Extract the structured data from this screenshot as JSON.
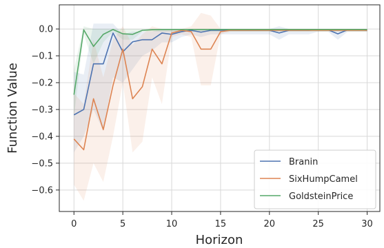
{
  "chart_data": {
    "type": "line",
    "title": "",
    "xlabel": "Horizon",
    "ylabel": "Function Value",
    "xlim": [
      -1.5,
      31.3
    ],
    "ylim": [
      -0.68,
      0.09
    ],
    "xticks": [
      0,
      5,
      10,
      15,
      20,
      25,
      30
    ],
    "yticks": [
      0.0,
      -0.1,
      -0.2,
      -0.3,
      -0.4,
      -0.5,
      -0.6
    ],
    "xtick_labels": [
      "0",
      "5",
      "10",
      "15",
      "20",
      "25",
      "30"
    ],
    "ytick_labels": [
      "0.0",
      "−0.1",
      "−0.2",
      "−0.3",
      "−0.4",
      "−0.5",
      "−0.6"
    ],
    "grid": true,
    "legend_position": "bottom-right",
    "x": [
      0,
      1,
      2,
      3,
      4,
      5,
      6,
      7,
      8,
      9,
      10,
      11,
      12,
      13,
      14,
      15,
      16,
      17,
      18,
      19,
      20,
      21,
      22,
      23,
      24,
      25,
      26,
      27,
      28,
      29,
      30
    ],
    "series": [
      {
        "name": "Branin",
        "color": "#4c72b0",
        "values": [
          -0.32,
          -0.3,
          -0.13,
          -0.13,
          -0.015,
          -0.085,
          -0.048,
          -0.04,
          -0.04,
          -0.015,
          -0.02,
          -0.01,
          -0.005,
          -0.012,
          -0.005,
          -0.005,
          -0.005,
          -0.005,
          -0.005,
          -0.005,
          -0.005,
          -0.015,
          -0.005,
          -0.005,
          -0.005,
          -0.003,
          -0.003,
          -0.018,
          -0.003,
          -0.003,
          -0.005
        ],
        "lower": [
          -0.46,
          -0.4,
          -0.3,
          -0.38,
          -0.18,
          -0.2,
          -0.15,
          -0.1,
          -0.08,
          -0.05,
          -0.05,
          -0.03,
          -0.02,
          -0.03,
          -0.02,
          -0.02,
          -0.02,
          -0.02,
          -0.02,
          -0.02,
          -0.02,
          -0.04,
          -0.02,
          -0.02,
          -0.02,
          -0.01,
          -0.01,
          -0.04,
          -0.01,
          -0.01,
          -0.01
        ],
        "upper": [
          -0.16,
          -0.17,
          0.02,
          0.02,
          0.02,
          -0.02,
          -0.01,
          -0.01,
          -0.01,
          0.0,
          0.0,
          0.0,
          0.0,
          0.0,
          0.0,
          0.0,
          0.0,
          0.0,
          0.0,
          0.0,
          0.0,
          0.01,
          0.0,
          0.0,
          0.0,
          0.0,
          0.0,
          0.0,
          0.0,
          0.0,
          0.0
        ]
      },
      {
        "name": "SixHumpCamel",
        "color": "#dd8452",
        "values": [
          -0.41,
          -0.45,
          -0.26,
          -0.375,
          -0.21,
          -0.075,
          -0.26,
          -0.215,
          -0.075,
          -0.13,
          -0.015,
          -0.005,
          -0.01,
          -0.075,
          -0.075,
          -0.01,
          -0.005,
          -0.005,
          -0.005,
          -0.005,
          -0.005,
          -0.005,
          -0.005,
          -0.005,
          -0.005,
          -0.005,
          -0.005,
          -0.005,
          -0.005,
          -0.005,
          -0.005
        ],
        "lower": [
          -0.58,
          -0.64,
          -0.5,
          -0.57,
          -0.4,
          -0.2,
          -0.46,
          -0.42,
          -0.18,
          -0.28,
          -0.03,
          -0.02,
          -0.03,
          -0.21,
          -0.21,
          -0.02,
          -0.01,
          -0.01,
          -0.01,
          -0.01,
          -0.01,
          -0.01,
          -0.01,
          -0.01,
          -0.01,
          -0.01,
          -0.01,
          -0.01,
          -0.01,
          -0.01,
          -0.01
        ],
        "upper": [
          -0.24,
          -0.28,
          -0.04,
          -0.18,
          -0.04,
          0.01,
          -0.06,
          -0.02,
          0.01,
          0.0,
          0.0,
          0.0,
          0.01,
          0.06,
          0.05,
          0.0,
          0.0,
          0.0,
          0.0,
          0.0,
          0.0,
          0.0,
          0.0,
          0.0,
          0.0,
          0.0,
          0.0,
          0.0,
          0.0,
          0.0,
          0.0
        ]
      },
      {
        "name": "GoldsteinPrice",
        "color": "#55a868",
        "values": [
          -0.245,
          -0.003,
          -0.065,
          -0.02,
          -0.002,
          -0.018,
          -0.02,
          -0.005,
          -0.003,
          -0.002,
          -0.002,
          -0.002,
          -0.002,
          -0.002,
          -0.002,
          -0.002,
          -0.002,
          -0.002,
          -0.002,
          -0.002,
          -0.002,
          -0.002,
          -0.002,
          -0.002,
          -0.002,
          -0.002,
          -0.002,
          -0.002,
          -0.002,
          -0.002,
          -0.002
        ],
        "lower": [
          -0.33,
          -0.02,
          -0.13,
          -0.05,
          -0.01,
          -0.04,
          -0.04,
          -0.01,
          -0.01,
          -0.01,
          -0.01,
          -0.01,
          -0.01,
          -0.01,
          -0.01,
          -0.01,
          -0.01,
          -0.01,
          -0.01,
          -0.01,
          -0.01,
          -0.01,
          -0.01,
          -0.01,
          -0.01,
          -0.01,
          -0.01,
          -0.01,
          -0.01,
          -0.01,
          -0.01
        ],
        "upper": [
          -0.15,
          0.01,
          0.0,
          0.0,
          0.0,
          0.0,
          0.0,
          0.0,
          0.0,
          0.0,
          0.0,
          0.0,
          0.0,
          0.0,
          0.0,
          0.0,
          0.0,
          0.0,
          0.0,
          0.0,
          0.0,
          0.0,
          0.0,
          0.0,
          0.0,
          0.0,
          0.0,
          0.0,
          0.0,
          0.0,
          0.0
        ]
      }
    ]
  }
}
